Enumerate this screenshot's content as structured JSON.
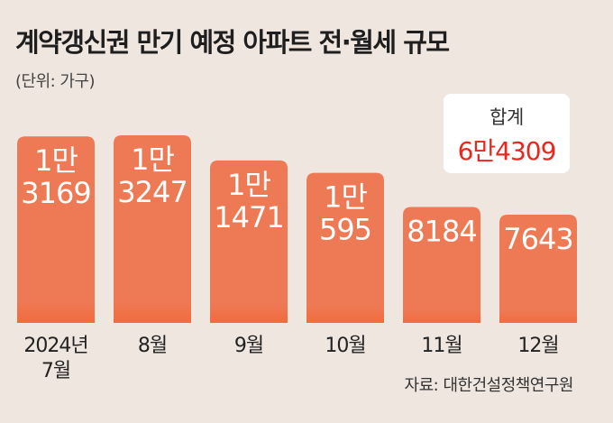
{
  "title": "계약갱신권 만기 예정 아파트 전·월세 규모",
  "unit": "(단위: 가구)",
  "total": {
    "label": "합계",
    "value": "6만4309"
  },
  "source": "자료: 대한건설정책연구원",
  "colors": {
    "bar": "#ee7a55",
    "bar_bottom": "#f26b3e",
    "total_value": "#e6281e",
    "background": "#efe6df"
  },
  "chart_data": {
    "type": "bar",
    "categories": [
      "2024년 7월",
      "8월",
      "9월",
      "10월",
      "11월",
      "12월"
    ],
    "category_lines": [
      [
        "2024년",
        "7월"
      ],
      [
        "8월"
      ],
      [
        "9월"
      ],
      [
        "10월"
      ],
      [
        "11월"
      ],
      [
        "12월"
      ]
    ],
    "values": [
      13169,
      13247,
      11471,
      10595,
      8184,
      7643
    ],
    "value_labels": [
      [
        "1만",
        "3169"
      ],
      [
        "1만",
        "3247"
      ],
      [
        "1만",
        "1471"
      ],
      [
        "1만",
        "595"
      ],
      [
        "8184"
      ],
      [
        "7643"
      ]
    ],
    "ylim": [
      0,
      14000
    ],
    "grid": false,
    "xlabel": "",
    "ylabel": ""
  }
}
